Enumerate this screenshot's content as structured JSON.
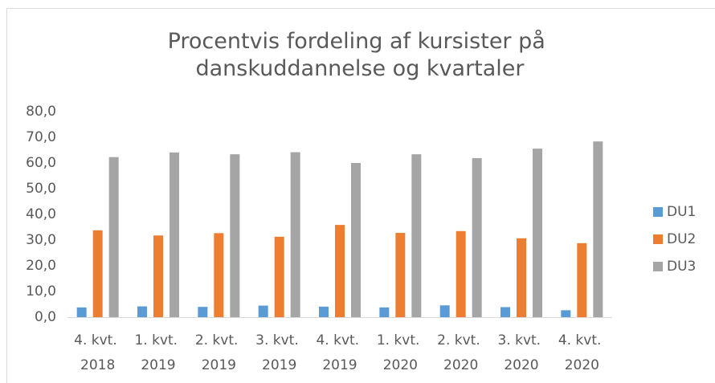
{
  "chart_data": {
    "type": "bar",
    "title": "Procentvis fordeling af kursister på danskuddannelse og kvartaler",
    "categories": [
      "4. kvt. 2018",
      "1. kvt. 2019",
      "2. kvt. 2019",
      "3. kvt. 2019",
      "4. kvt. 2019",
      "1. kvt. 2020",
      "2. kvt. 2020",
      "3. kvt. 2020",
      "4. kvt. 2020"
    ],
    "series": [
      {
        "name": "DU1",
        "color": "#5b9bd5",
        "values": [
          3.8,
          4.2,
          4.0,
          4.5,
          4.1,
          3.8,
          4.6,
          3.9,
          2.7
        ]
      },
      {
        "name": "DU2",
        "color": "#ed7d31",
        "values": [
          33.8,
          31.8,
          32.7,
          31.3,
          35.9,
          32.8,
          33.5,
          30.7,
          28.8
        ]
      },
      {
        "name": "DU3",
        "color": "#a5a5a5",
        "values": [
          62.3,
          64.1,
          63.4,
          64.2,
          60.0,
          63.4,
          61.9,
          65.6,
          68.4
        ]
      }
    ],
    "ylim": [
      0,
      80
    ],
    "yticks": [
      {
        "value": 0,
        "label": "0,0"
      },
      {
        "value": 10,
        "label": "10,0"
      },
      {
        "value": 20,
        "label": "20,0"
      },
      {
        "value": 30,
        "label": "30,0"
      },
      {
        "value": 40,
        "label": "40,0"
      },
      {
        "value": 50,
        "label": "50,0"
      },
      {
        "value": 60,
        "label": "60,0"
      },
      {
        "value": 70,
        "label": "70,0"
      },
      {
        "value": 80,
        "label": "80,0"
      }
    ],
    "grid": false,
    "legend": "right"
  }
}
